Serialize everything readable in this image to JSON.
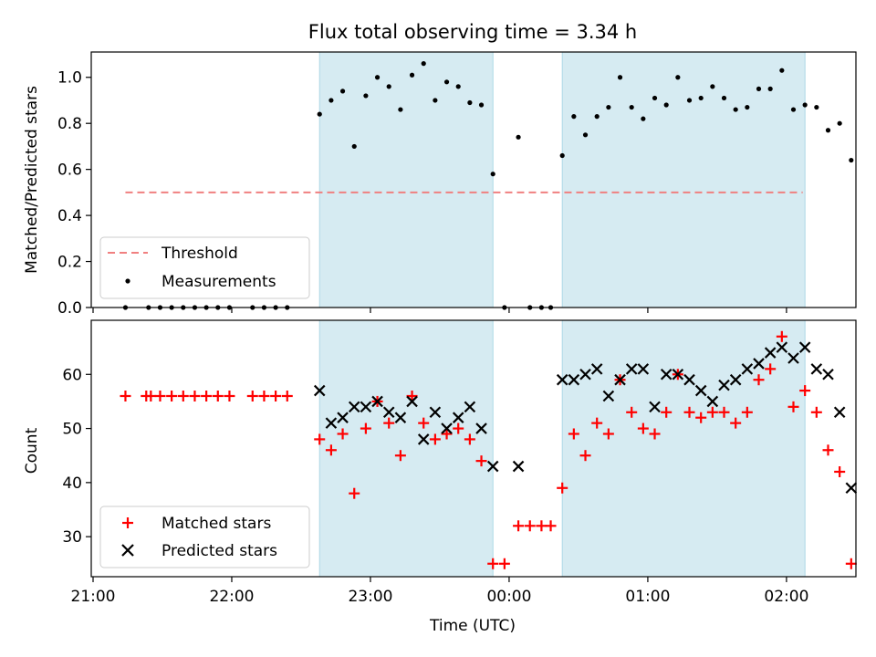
{
  "chart_data": [
    {
      "type": "scatter",
      "title": "Flux total observing time = 3.34 h",
      "xlabel": "",
      "ylabel": "Matched/Predicted stars",
      "ylim": [
        0,
        1.11
      ],
      "x_type": "time",
      "x_ticks": [
        "21:00",
        "22:00",
        "23:00",
        "00:00",
        "01:00",
        "02:00"
      ],
      "x_tick_labels_visible": false,
      "y_ticks": [
        "0.0",
        "0.2",
        "0.4",
        "0.6",
        "0.8",
        "1.0"
      ],
      "shaded_intervals": [
        [
          "22:38",
          "23:53"
        ],
        [
          "00:23",
          "02:08"
        ]
      ],
      "threshold": {
        "name": "Threshold",
        "value": 0.5,
        "x_start": "21:14",
        "x_end": "02:07",
        "color": "#f08080",
        "style": "dashed"
      },
      "series": [
        {
          "name": "Measurements",
          "marker": "dot",
          "color": "#000000",
          "points": [
            [
              "21:14",
              0.0
            ],
            [
              "21:24",
              0.0
            ],
            [
              "21:29",
              0.0
            ],
            [
              "21:34",
              0.0
            ],
            [
              "21:39",
              0.0
            ],
            [
              "21:44",
              0.0
            ],
            [
              "21:49",
              0.0
            ],
            [
              "21:54",
              0.0
            ],
            [
              "21:59",
              0.0
            ],
            [
              "22:09",
              0.0
            ],
            [
              "22:14",
              0.0
            ],
            [
              "22:19",
              0.0
            ],
            [
              "22:24",
              0.0
            ],
            [
              "22:38",
              0.84
            ],
            [
              "22:43",
              0.9
            ],
            [
              "22:48",
              0.94
            ],
            [
              "22:53",
              0.7
            ],
            [
              "22:58",
              0.92
            ],
            [
              "23:03",
              1.0
            ],
            [
              "23:08",
              0.96
            ],
            [
              "23:13",
              0.86
            ],
            [
              "23:18",
              1.01
            ],
            [
              "23:23",
              1.06
            ],
            [
              "23:28",
              0.9
            ],
            [
              "23:33",
              0.98
            ],
            [
              "23:38",
              0.96
            ],
            [
              "23:43",
              0.89
            ],
            [
              "23:48",
              0.88
            ],
            [
              "23:53",
              0.58
            ],
            [
              "23:58",
              0.0
            ],
            [
              "00:04",
              0.74
            ],
            [
              "00:09",
              0.0
            ],
            [
              "00:14",
              0.0
            ],
            [
              "00:18",
              0.0
            ],
            [
              "00:23",
              0.66
            ],
            [
              "00:28",
              0.83
            ],
            [
              "00:33",
              0.75
            ],
            [
              "00:38",
              0.83
            ],
            [
              "00:43",
              0.87
            ],
            [
              "00:48",
              1.0
            ],
            [
              "00:53",
              0.87
            ],
            [
              "00:58",
              0.82
            ],
            [
              "01:03",
              0.91
            ],
            [
              "01:08",
              0.88
            ],
            [
              "01:13",
              1.0
            ],
            [
              "01:18",
              0.9
            ],
            [
              "01:23",
              0.91
            ],
            [
              "01:28",
              0.96
            ],
            [
              "01:33",
              0.91
            ],
            [
              "01:38",
              0.86
            ],
            [
              "01:43",
              0.87
            ],
            [
              "01:48",
              0.95
            ],
            [
              "01:53",
              0.95
            ],
            [
              "01:58",
              1.03
            ],
            [
              "02:03",
              0.86
            ],
            [
              "02:08",
              0.88
            ],
            [
              "02:13",
              0.87
            ],
            [
              "02:18",
              0.77
            ],
            [
              "02:23",
              0.8
            ],
            [
              "02:28",
              0.64
            ]
          ]
        }
      ],
      "legend": [
        "Threshold",
        "Measurements"
      ],
      "legend_position": "lower-left"
    },
    {
      "type": "scatter",
      "title": "",
      "xlabel": "Time (UTC)",
      "ylabel": "Count",
      "ylim": [
        22.6,
        70
      ],
      "x_type": "time",
      "x_ticks": [
        "21:00",
        "22:00",
        "23:00",
        "00:00",
        "01:00",
        "02:00"
      ],
      "y_ticks": [
        "30",
        "40",
        "50",
        "60"
      ],
      "shaded_intervals": [
        [
          "22:38",
          "23:53"
        ],
        [
          "00:23",
          "02:08"
        ]
      ],
      "series": [
        {
          "name": "Matched stars",
          "marker": "plus",
          "color": "#ff0000",
          "points": [
            [
              "21:14",
              56
            ],
            [
              "21:23",
              56
            ],
            [
              "21:25",
              56
            ],
            [
              "21:29",
              56
            ],
            [
              "21:34",
              56
            ],
            [
              "21:39",
              56
            ],
            [
              "21:44",
              56
            ],
            [
              "21:49",
              56
            ],
            [
              "21:54",
              56
            ],
            [
              "21:59",
              56
            ],
            [
              "22:09",
              56
            ],
            [
              "22:14",
              56
            ],
            [
              "22:19",
              56
            ],
            [
              "22:24",
              56
            ],
            [
              "22:38",
              48
            ],
            [
              "22:43",
              46
            ],
            [
              "22:48",
              49
            ],
            [
              "22:53",
              38
            ],
            [
              "22:58",
              50
            ],
            [
              "23:03",
              55
            ],
            [
              "23:08",
              51
            ],
            [
              "23:13",
              45
            ],
            [
              "23:18",
              56
            ],
            [
              "23:23",
              51
            ],
            [
              "23:28",
              48
            ],
            [
              "23:33",
              49
            ],
            [
              "23:38",
              50
            ],
            [
              "23:43",
              48
            ],
            [
              "23:48",
              44
            ],
            [
              "23:53",
              25
            ],
            [
              "23:58",
              25
            ],
            [
              "00:04",
              32
            ],
            [
              "00:09",
              32
            ],
            [
              "00:14",
              32
            ],
            [
              "00:18",
              32
            ],
            [
              "00:23",
              39
            ],
            [
              "00:28",
              49
            ],
            [
              "00:33",
              45
            ],
            [
              "00:38",
              51
            ],
            [
              "00:43",
              49
            ],
            [
              "00:48",
              59
            ],
            [
              "00:53",
              53
            ],
            [
              "00:58",
              50
            ],
            [
              "01:03",
              49
            ],
            [
              "01:08",
              53
            ],
            [
              "01:13",
              60
            ],
            [
              "01:18",
              53
            ],
            [
              "01:23",
              52
            ],
            [
              "01:28",
              53
            ],
            [
              "01:33",
              53
            ],
            [
              "01:38",
              51
            ],
            [
              "01:43",
              53
            ],
            [
              "01:48",
              59
            ],
            [
              "01:53",
              61
            ],
            [
              "01:58",
              67
            ],
            [
              "02:03",
              54
            ],
            [
              "02:08",
              57
            ],
            [
              "02:13",
              53
            ],
            [
              "02:18",
              46
            ],
            [
              "02:23",
              42
            ],
            [
              "02:28",
              25
            ]
          ]
        },
        {
          "name": "Predicted stars",
          "marker": "x",
          "color": "#000000",
          "points": [
            [
              "22:38",
              57
            ],
            [
              "22:43",
              51
            ],
            [
              "22:48",
              52
            ],
            [
              "22:53",
              54
            ],
            [
              "22:58",
              54
            ],
            [
              "23:03",
              55
            ],
            [
              "23:08",
              53
            ],
            [
              "23:13",
              52
            ],
            [
              "23:18",
              55
            ],
            [
              "23:23",
              48
            ],
            [
              "23:28",
              53
            ],
            [
              "23:33",
              50
            ],
            [
              "23:38",
              52
            ],
            [
              "23:43",
              54
            ],
            [
              "23:48",
              50
            ],
            [
              "23:53",
              43
            ],
            [
              "00:04",
              43
            ],
            [
              "00:23",
              59
            ],
            [
              "00:28",
              59
            ],
            [
              "00:33",
              60
            ],
            [
              "00:38",
              61
            ],
            [
              "00:43",
              56
            ],
            [
              "00:48",
              59
            ],
            [
              "00:53",
              61
            ],
            [
              "00:58",
              61
            ],
            [
              "01:03",
              54
            ],
            [
              "01:08",
              60
            ],
            [
              "01:13",
              60
            ],
            [
              "01:18",
              59
            ],
            [
              "01:23",
              57
            ],
            [
              "01:28",
              55
            ],
            [
              "01:33",
              58
            ],
            [
              "01:38",
              59
            ],
            [
              "01:43",
              61
            ],
            [
              "01:48",
              62
            ],
            [
              "01:53",
              64
            ],
            [
              "01:58",
              65
            ],
            [
              "02:03",
              63
            ],
            [
              "02:08",
              65
            ],
            [
              "02:13",
              61
            ],
            [
              "02:18",
              60
            ],
            [
              "02:23",
              53
            ],
            [
              "02:28",
              39
            ]
          ]
        }
      ],
      "legend": [
        "Matched stars",
        "Predicted stars"
      ],
      "legend_position": "lower-left"
    }
  ]
}
